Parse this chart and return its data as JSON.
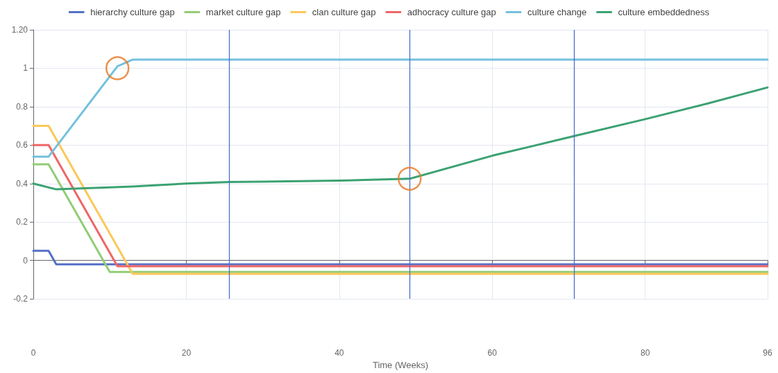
{
  "chart_data": {
    "type": "line",
    "xlabel": "Time (Weeks)",
    "xlim": [
      0,
      96
    ],
    "xticks": [
      0,
      20,
      40,
      60,
      80,
      96
    ],
    "ylim": [
      -0.2,
      1.2
    ],
    "yticks": [
      -0.2,
      0,
      0.2,
      0.4,
      0.6,
      0.8,
      1,
      {
        "value": 1.2,
        "label": "1.20"
      }
    ],
    "grid": true,
    "legend": "top",
    "marker": "none",
    "line_style": "solid",
    "series": [
      {
        "name": "hierarchy culture gap",
        "color": "#5470c6",
        "x": [
          0,
          2,
          3,
          96
        ],
        "values": [
          0.05,
          0.05,
          -0.02,
          -0.02
        ]
      },
      {
        "name": "market culture gap",
        "color": "#91cc75",
        "x": [
          0,
          2,
          10,
          96
        ],
        "values": [
          0.5,
          0.5,
          -0.06,
          -0.06
        ]
      },
      {
        "name": "clan culture gap",
        "color": "#fac858",
        "x": [
          0,
          2,
          13,
          96
        ],
        "values": [
          0.7,
          0.7,
          -0.07,
          -0.07
        ]
      },
      {
        "name": "adhocracy culture gap",
        "color": "#ee6666",
        "x": [
          0,
          2,
          11,
          96
        ],
        "values": [
          0.6,
          0.6,
          -0.03,
          -0.03
        ]
      },
      {
        "name": "culture change",
        "color": "#73c0de",
        "x": [
          0,
          2,
          11,
          13,
          96
        ],
        "values": [
          0.54,
          0.54,
          1.01,
          1.045,
          1.045
        ]
      },
      {
        "name": "culture embeddedness",
        "color": "#3ba272",
        "x": [
          0,
          3,
          10,
          13,
          20,
          25.6,
          30,
          40,
          49.2,
          60,
          70.7,
          80,
          88,
          96
        ],
        "values": [
          0.4,
          0.37,
          0.38,
          0.385,
          0.4,
          0.408,
          0.41,
          0.415,
          0.425,
          0.545,
          0.647,
          0.735,
          0.815,
          0.9
        ]
      },
      {
        "type": "scatter",
        "color": "#e87722",
        "marker": "circle",
        "x": [
          11,
          49.2
        ],
        "values": [
          1.0,
          0.425
        ]
      }
    ],
    "ref_lines": [
      {
        "axis": "x",
        "value": 25.6,
        "color": "#4a6fd0"
      },
      {
        "axis": "x",
        "value": 49.2,
        "color": "#4a6fd0"
      },
      {
        "axis": "x",
        "value": 70.7,
        "color": "#4a6fd0"
      }
    ]
  }
}
